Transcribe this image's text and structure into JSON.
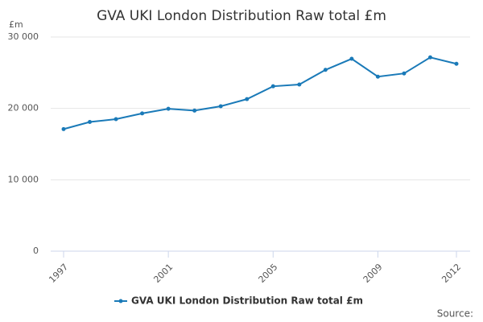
{
  "chart_data": {
    "type": "line",
    "title": "GVA UKI London Distribution Raw total £m",
    "y_unit": "£m",
    "x": [
      1997,
      1998,
      1999,
      2000,
      2001,
      2002,
      2003,
      2004,
      2005,
      2006,
      2007,
      2008,
      2009,
      2010,
      2011,
      2012
    ],
    "series": [
      {
        "name": "GVA UKI London Distribution Raw total £m",
        "color": "#1a7ab8",
        "values": [
          17100,
          18100,
          18500,
          19300,
          19950,
          19700,
          20300,
          21300,
          23100,
          23350,
          25400,
          26950,
          24450,
          24900,
          27150,
          26250
        ]
      }
    ],
    "xlim": [
      1997,
      2012
    ],
    "xticks": [
      1997,
      2001,
      2005,
      2009,
      2012
    ],
    "ylim": [
      0,
      30000
    ],
    "yticks": [
      0,
      {
        "value": 10000,
        "label": "10 000"
      },
      {
        "value": 20000,
        "label": "20 000"
      },
      {
        "value": 30000,
        "label": "30 000"
      }
    ],
    "grid": true,
    "legend": "bottom",
    "source": "Source:"
  }
}
